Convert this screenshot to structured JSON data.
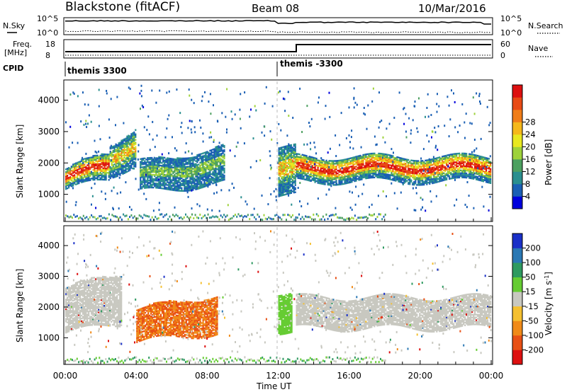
{
  "header": {
    "station": "Blackstone (fitACF)",
    "beam": "Beam 08",
    "date": "10/Mar/2016"
  },
  "panels": {
    "noise": {
      "left_label": "N.Sky",
      "right_label": "N.Search",
      "left_ticks": [
        "10^5",
        "10^0"
      ],
      "right_ticks": [
        "10^5",
        "10^0"
      ]
    },
    "freq": {
      "left_label_1": "Freq.",
      "left_label_2": "[MHz]",
      "right_label": "Nave",
      "left_ticks": [
        "18",
        "8"
      ],
      "right_ticks": [
        "60",
        "0"
      ]
    },
    "cpid": {
      "label": "CPID",
      "mode_1": "themis 3300",
      "mode_2": "themis -3300"
    }
  },
  "chart_data": [
    {
      "type": "heatmap",
      "name": "Power",
      "ylabel": "Slant Range [km]",
      "xlabel": "",
      "ylim": [
        180,
        4600
      ],
      "y_ticks": [
        1000,
        2000,
        3000,
        4000
      ],
      "x_ticks": [
        "00:00",
        "04:00",
        "08:00",
        "12:00",
        "16:00",
        "20:00",
        "00:00"
      ],
      "colorbar": {
        "label": "Power [dB]",
        "ticks": [
          4,
          8,
          12,
          16,
          20,
          24,
          28
        ],
        "colors": [
          "#0000dd",
          "#1a5fb4",
          "#2a8f8f",
          "#4da060",
          "#9ed23a",
          "#e8e820",
          "#f5b81a",
          "#f07d18",
          "#e84a15",
          "#dd1010"
        ]
      },
      "bands": [
        {
          "t_start": 0.0,
          "t_end": 2.5,
          "r_start": 1150,
          "r_end": 1800,
          "level": "high"
        },
        {
          "t_start": 2.5,
          "t_end": 4.0,
          "r_start": 1600,
          "r_end": 2600,
          "level": "mid"
        },
        {
          "t_start": 4.2,
          "t_end": 9.0,
          "r_start": 1050,
          "r_end": 2000,
          "level": "low"
        },
        {
          "t_start": 12.0,
          "t_end": 13.0,
          "r_start": 950,
          "r_end": 2500,
          "level": "mid"
        },
        {
          "t_start": 13.0,
          "t_end": 24.0,
          "r_start": 1400,
          "r_end": 2200,
          "level": "high"
        }
      ]
    },
    {
      "type": "heatmap",
      "name": "Velocity",
      "ylabel": "Slant Range [km]",
      "xlabel": "Time UT",
      "ylim": [
        180,
        4600
      ],
      "y_ticks": [
        1000,
        2000,
        3000,
        4000
      ],
      "x_ticks": [
        "00:00",
        "04:00",
        "08:00",
        "12:00",
        "16:00",
        "20:00",
        "00:00"
      ],
      "colorbar": {
        "label": "Velocity [m s^-1]",
        "ticks": [
          200,
          100,
          50,
          15,
          -15,
          -50,
          -100,
          -200
        ],
        "colors": [
          "#1a30c8",
          "#2a78b4",
          "#2e9a60",
          "#66cc33",
          "#c8c8c0",
          "#f5c030",
          "#f08a18",
          "#e85015",
          "#dd1010"
        ]
      },
      "bands": [
        {
          "t_start": 0.0,
          "t_end": 3.2,
          "r_start": 1150,
          "r_end": 2600,
          "level": "ground"
        },
        {
          "t_start": 4.0,
          "t_end": 8.6,
          "r_start": 850,
          "r_end": 1900,
          "level": "negative"
        },
        {
          "t_start": 12.0,
          "t_end": 12.8,
          "r_start": 1200,
          "r_end": 2500,
          "level": "positive"
        },
        {
          "t_start": 13.0,
          "t_end": 24.0,
          "r_start": 1300,
          "r_end": 2300,
          "level": "ground"
        }
      ]
    }
  ]
}
